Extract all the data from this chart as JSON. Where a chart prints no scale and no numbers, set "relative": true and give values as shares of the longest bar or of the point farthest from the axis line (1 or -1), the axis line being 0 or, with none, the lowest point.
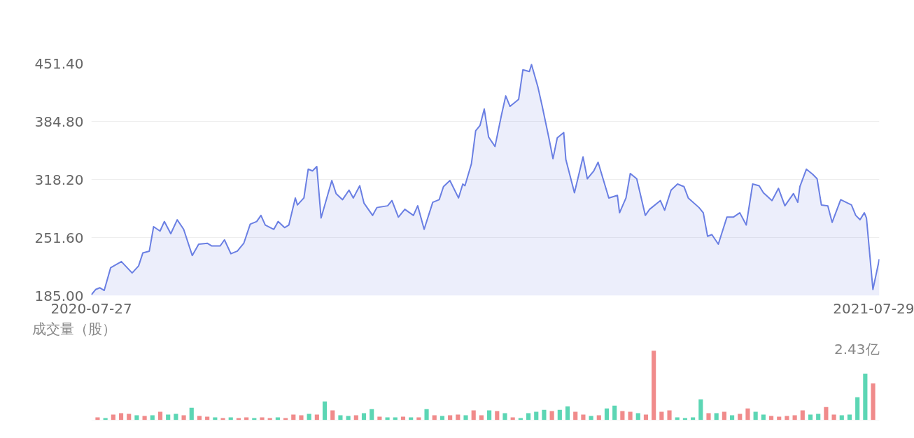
{
  "chart_data": [
    {
      "type": "area",
      "x": [
        "2020-07-27",
        "2020-07-29",
        "2020-07-31",
        "2020-08-02",
        "2020-08-05",
        "2020-08-10",
        "2020-08-15",
        "2020-08-18",
        "2020-08-20",
        "2020-08-23",
        "2020-08-25",
        "2020-08-28",
        "2020-08-30",
        "2020-09-02",
        "2020-09-05",
        "2020-09-08",
        "2020-09-12",
        "2020-09-15",
        "2020-09-19",
        "2020-09-21",
        "2020-09-25",
        "2020-09-27",
        "2020-09-30",
        "2020-10-03",
        "2020-10-06",
        "2020-10-09",
        "2020-10-12",
        "2020-10-14",
        "2020-10-16",
        "2020-10-20",
        "2020-10-22",
        "2020-10-25",
        "2020-10-27",
        "2020-10-30",
        "2020-10-31",
        "2020-11-03",
        "2020-11-05",
        "2020-11-07",
        "2020-11-09",
        "2020-11-11",
        "2020-11-16",
        "2020-11-18",
        "2020-11-21",
        "2020-11-24",
        "2020-11-26",
        "2020-11-29",
        "2020-12-01",
        "2020-12-05",
        "2020-12-07",
        "2020-12-12",
        "2020-12-14",
        "2020-12-17",
        "2020-12-20",
        "2020-12-24",
        "2020-12-26",
        "2020-12-29",
        "2021-01-02",
        "2021-01-05",
        "2021-01-07",
        "2021-01-10",
        "2021-01-14",
        "2021-01-16",
        "2021-01-17",
        "2021-01-20",
        "2021-01-22",
        "2021-01-24",
        "2021-01-26",
        "2021-01-28",
        "2021-01-31",
        "2021-02-03",
        "2021-02-05",
        "2021-02-07",
        "2021-02-11",
        "2021-02-13",
        "2021-02-16",
        "2021-02-17",
        "2021-02-20",
        "2021-02-22",
        "2021-02-25",
        "2021-02-27",
        "2021-03-01",
        "2021-03-04",
        "2021-03-05",
        "2021-03-09",
        "2021-03-13",
        "2021-03-15",
        "2021-03-18",
        "2021-03-20",
        "2021-03-25",
        "2021-03-29",
        "2021-03-30",
        "2021-04-02",
        "2021-04-04",
        "2021-04-07",
        "2021-04-11",
        "2021-04-13",
        "2021-04-18",
        "2021-04-20",
        "2021-04-23",
        "2021-04-26",
        "2021-04-29",
        "2021-05-01",
        "2021-05-06",
        "2021-05-08",
        "2021-05-10",
        "2021-05-12",
        "2021-05-15",
        "2021-05-19",
        "2021-05-22",
        "2021-05-25",
        "2021-05-28",
        "2021-05-31",
        "2021-06-03",
        "2021-06-05",
        "2021-06-09",
        "2021-06-12",
        "2021-06-15",
        "2021-06-19",
        "2021-06-21",
        "2021-06-22",
        "2021-06-25",
        "2021-06-28",
        "2021-06-30",
        "2021-07-02",
        "2021-07-05",
        "2021-07-07",
        "2021-07-11",
        "2021-07-16",
        "2021-07-18",
        "2021-07-20",
        "2021-07-22",
        "2021-07-23",
        "2021-07-26",
        "2021-07-29"
      ],
      "series": [
        {
          "color": "#6a7fe3",
          "values": [
            186,
            192,
            194,
            191,
            217,
            224,
            211,
            219,
            234,
            236,
            264,
            259,
            270,
            256,
            272,
            261,
            231,
            244,
            245,
            242,
            242,
            249,
            233,
            236,
            245,
            267,
            270,
            277,
            266,
            261,
            270,
            263,
            266,
            297,
            289,
            297,
            330,
            328,
            333,
            274,
            317,
            302,
            295,
            306,
            297,
            311,
            291,
            277,
            286,
            288,
            294,
            275,
            284,
            277,
            288,
            261,
            292,
            295,
            310,
            317,
            297,
            313,
            311,
            336,
            374,
            380,
            399,
            367,
            356,
            392,
            414,
            402,
            410,
            444,
            442,
            450,
            424,
            402,
            367,
            342,
            366,
            372,
            341,
            303,
            344,
            319,
            328,
            338,
            297,
            300,
            280,
            297,
            325,
            319,
            277,
            284,
            294,
            283,
            306,
            313,
            310,
            297,
            286,
            280,
            253,
            255,
            244,
            275,
            275,
            280,
            266,
            313,
            311,
            303,
            294,
            308,
            288,
            302,
            292,
            310,
            330,
            324,
            319,
            289,
            288,
            269,
            295,
            289,
            277,
            272,
            280,
            274,
            192,
            227
          ]
        }
      ],
      "xlim": [
        "2020-07-27",
        "2021-07-29"
      ],
      "xticks": [
        {
          "value": "2020-07-27",
          "label": "2020-07-27"
        },
        {
          "value": "2021-07-29",
          "label": "2021-07-29"
        }
      ],
      "ylim": [
        185,
        451.4
      ],
      "yticks": [
        {
          "value": 185,
          "label": "185.00"
        },
        {
          "value": 251.6,
          "label": "251.60"
        },
        {
          "value": 318.2,
          "label": "318.20"
        },
        {
          "value": 384.8,
          "label": "384.80"
        },
        {
          "value": 451.4,
          "label": "451.40"
        }
      ],
      "grid": "y"
    },
    {
      "type": "bar",
      "title": "成交量（股）",
      "annotations": [
        "2.43亿"
      ],
      "relative": true,
      "categories": [
        null,
        null,
        null,
        null,
        null,
        null,
        null,
        null,
        null,
        null,
        null,
        null,
        null,
        null,
        null,
        null,
        null,
        null,
        null,
        null,
        null,
        null,
        null,
        null,
        null,
        null,
        null,
        null,
        null,
        null,
        null,
        null,
        null,
        null,
        null,
        null,
        null,
        null,
        null,
        null,
        null,
        null,
        null,
        null,
        null,
        null,
        null,
        null,
        null,
        null,
        null,
        null,
        null,
        null,
        null,
        null,
        null,
        null,
        null,
        null,
        null,
        null,
        null,
        null,
        null,
        null,
        null,
        null,
        null,
        null,
        null,
        null,
        null,
        null,
        null,
        null,
        null,
        null,
        null,
        null,
        null,
        null,
        null,
        null,
        null,
        null,
        null,
        null,
        null,
        null,
        null,
        null,
        null,
        null,
        null,
        null,
        null,
        null,
        null,
        null
      ],
      "values": [
        0.04,
        0.03,
        0.08,
        0.1,
        0.09,
        0.07,
        0.06,
        0.07,
        0.12,
        0.08,
        0.09,
        0.07,
        0.18,
        0.06,
        0.05,
        0.04,
        0.03,
        0.04,
        0.03,
        0.04,
        0.03,
        0.04,
        0.03,
        0.04,
        0.03,
        0.08,
        0.07,
        0.09,
        0.08,
        0.27,
        0.14,
        0.07,
        0.06,
        0.07,
        0.1,
        0.16,
        0.05,
        0.04,
        0.04,
        0.05,
        0.04,
        0.04,
        0.16,
        0.07,
        0.06,
        0.07,
        0.08,
        0.07,
        0.14,
        0.07,
        0.14,
        0.13,
        0.1,
        0.04,
        0.03,
        0.1,
        0.12,
        0.15,
        0.13,
        0.15,
        0.2,
        0.12,
        0.08,
        0.06,
        0.07,
        0.17,
        0.21,
        0.13,
        0.12,
        0.1,
        0.08,
        1.0,
        0.12,
        0.14,
        0.04,
        0.03,
        0.04,
        0.3,
        0.1,
        0.1,
        0.12,
        0.07,
        0.09,
        0.17,
        0.12,
        0.08,
        0.06,
        0.05,
        0.06,
        0.07,
        0.14,
        0.08,
        0.09,
        0.19,
        0.08,
        0.07,
        0.08,
        0.33,
        0.67,
        0.53
      ],
      "colors": [
        "#f08b8b",
        "#5cd6b4",
        "#f08b8b",
        "#f08b8b",
        "#f08b8b",
        "#5cd6b4",
        "#f08b8b",
        "#5cd6b4",
        "#f08b8b",
        "#5cd6b4",
        "#5cd6b4",
        "#f08b8b",
        "#5cd6b4",
        "#f08b8b",
        "#f08b8b",
        "#5cd6b4",
        "#f08b8b",
        "#5cd6b4",
        "#f08b8b",
        "#f08b8b",
        "#5cd6b4",
        "#f08b8b",
        "#f08b8b",
        "#5cd6b4",
        "#f08b8b",
        "#f08b8b",
        "#f08b8b",
        "#5cd6b4",
        "#f08b8b",
        "#5cd6b4",
        "#f08b8b",
        "#5cd6b4",
        "#5cd6b4",
        "#f08b8b",
        "#5cd6b4",
        "#5cd6b4",
        "#f08b8b",
        "#5cd6b4",
        "#5cd6b4",
        "#f08b8b",
        "#5cd6b4",
        "#f08b8b",
        "#5cd6b4",
        "#f08b8b",
        "#5cd6b4",
        "#f08b8b",
        "#f08b8b",
        "#5cd6b4",
        "#f08b8b",
        "#f08b8b",
        "#5cd6b4",
        "#f08b8b",
        "#5cd6b4",
        "#f08b8b",
        "#5cd6b4",
        "#5cd6b4",
        "#5cd6b4",
        "#5cd6b4",
        "#f08b8b",
        "#5cd6b4",
        "#5cd6b4",
        "#f08b8b",
        "#f08b8b",
        "#5cd6b4",
        "#f08b8b",
        "#5cd6b4",
        "#5cd6b4",
        "#f08b8b",
        "#f08b8b",
        "#5cd6b4",
        "#f08b8b",
        "#f08b8b",
        "#f08b8b",
        "#f08b8b",
        "#5cd6b4",
        "#5cd6b4",
        "#5cd6b4",
        "#5cd6b4",
        "#f08b8b",
        "#5cd6b4",
        "#f08b8b",
        "#5cd6b4",
        "#f08b8b",
        "#f08b8b",
        "#5cd6b4",
        "#5cd6b4",
        "#f08b8b",
        "#f08b8b",
        "#f08b8b",
        "#f08b8b",
        "#f08b8b",
        "#5cd6b4",
        "#5cd6b4",
        "#f08b8b",
        "#f08b8b",
        "#5cd6b4",
        "#5cd6b4",
        "#5cd6b4",
        "#5cd6b4",
        "#f08b8b"
      ]
    }
  ]
}
